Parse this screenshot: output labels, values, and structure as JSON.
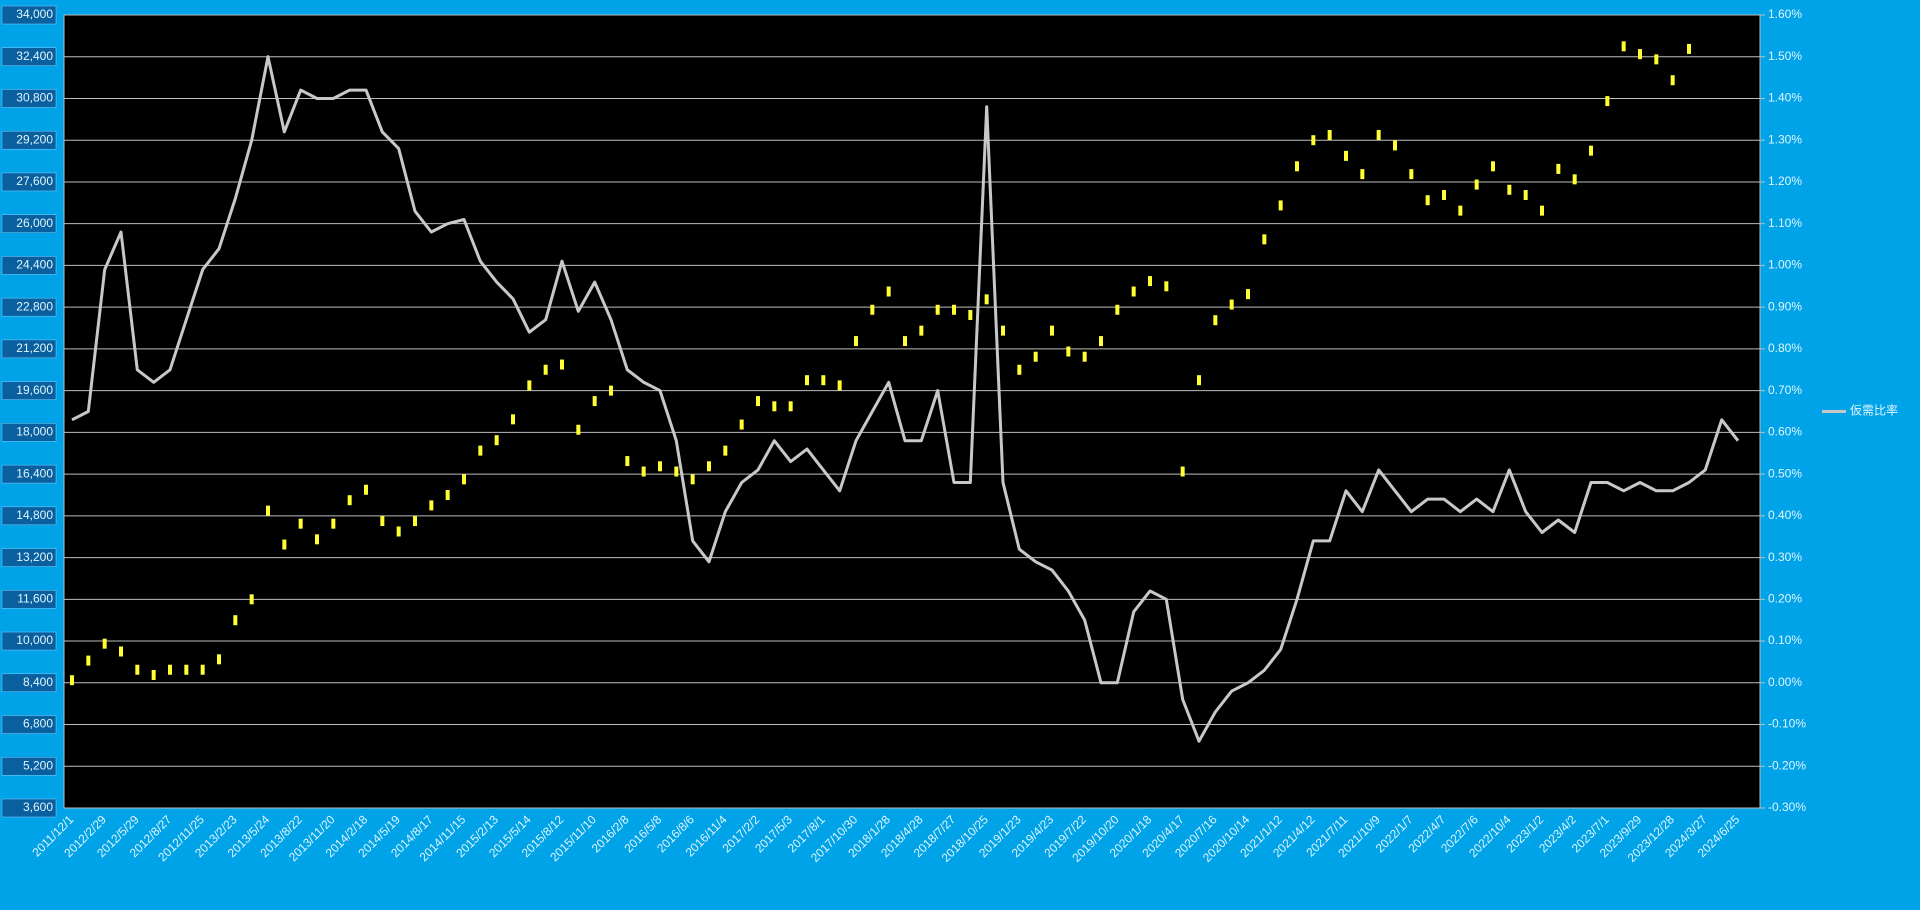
{
  "chart_data": {
    "type": "combo",
    "categories": [
      "2011/12/1",
      null,
      "2012/2/29",
      null,
      "2012/5/29",
      null,
      "2012/8/27",
      null,
      "2012/11/25",
      null,
      "2013/2/23",
      null,
      "2013/5/24",
      null,
      "2013/8/22",
      null,
      "2013/11/20",
      null,
      "2014/2/18",
      null,
      "2014/5/19",
      null,
      "2014/8/17",
      null,
      "2014/11/15",
      null,
      "2015/2/13",
      null,
      "2015/5/14",
      null,
      "2015/8/12",
      null,
      "2015/11/10",
      null,
      "2016/2/8",
      null,
      "2016/5/8",
      null,
      "2016/8/6",
      null,
      "2016/11/4",
      null,
      "2017/2/2",
      null,
      "2017/5/3",
      null,
      "2017/8/1",
      null,
      "2017/10/30",
      null,
      "2018/1/28",
      null,
      "2018/4/28",
      null,
      "2018/7/27",
      null,
      "2018/10/25",
      null,
      "2019/1/23",
      null,
      "2019/4/23",
      null,
      "2019/7/22",
      null,
      "2019/10/20",
      null,
      "2020/1/18",
      null,
      "2020/4/17",
      null,
      "2020/7/16",
      null,
      "2020/10/14",
      null,
      "2021/1/12",
      null,
      "2021/4/12",
      null,
      "2021/7/11",
      null,
      "2021/10/9",
      null,
      "2022/1/7",
      null,
      "2022/4/7",
      null,
      "2022/7/6",
      null,
      "2022/10/4",
      null,
      "2023/1/2",
      null,
      "2023/4/2",
      null,
      "2023/7/1",
      null,
      "2023/9/29",
      null,
      "2023/12/28",
      null,
      "2024/3/27",
      null,
      "2024/6/25"
    ],
    "series": [
      {
        "type": "scatter",
        "color": "#ffff33",
        "values": [
          8500,
          9250,
          9900,
          9600,
          8900,
          8700,
          8900,
          8900,
          8900,
          9300,
          10800,
          11600,
          15000,
          13700,
          14500,
          13900,
          14500,
          15400,
          15800,
          14600,
          14200,
          14600,
          15200,
          15600,
          16200,
          17300,
          17700,
          18500,
          19800,
          20400,
          20600,
          18100,
          19200,
          19600,
          16900,
          16500,
          16700,
          16500,
          16200,
          16700,
          17300,
          18300,
          19200,
          19000,
          19000,
          20000,
          20000,
          19800,
          21500,
          22700,
          23400,
          21500,
          21900,
          22700,
          22700,
          22500,
          23100,
          21900,
          20400,
          20900,
          21900,
          21100,
          20900,
          21500,
          22700,
          23400,
          23800,
          23600,
          16500,
          20000,
          22300,
          22900,
          23300,
          25400,
          26700,
          28200,
          29200,
          29400,
          28600,
          27900,
          29400,
          29000,
          27900,
          26900,
          27100,
          26500,
          27500,
          28200,
          27300,
          27100,
          26500,
          28100,
          27700,
          28800,
          30700,
          32800,
          32500,
          32300,
          31500,
          32700,
          null,
          null,
          null
        ]
      },
      {
        "type": "line",
        "name": "仮需比率",
        "color": "#c8c8c8",
        "axis": "y2",
        "values": [
          0.63,
          0.65,
          0.99,
          1.08,
          0.75,
          0.72,
          0.75,
          0.87,
          0.99,
          1.04,
          1.16,
          1.3,
          1.5,
          1.32,
          1.42,
          1.4,
          1.4,
          1.42,
          1.42,
          1.32,
          1.28,
          1.13,
          1.08,
          1.1,
          1.11,
          1.01,
          0.96,
          0.92,
          0.84,
          0.87,
          1.01,
          0.89,
          0.96,
          0.87,
          0.75,
          0.72,
          0.7,
          0.58,
          0.34,
          0.29,
          0.41,
          0.48,
          0.51,
          0.58,
          0.53,
          0.56,
          0.51,
          0.46,
          0.58,
          0.65,
          0.72,
          0.58,
          0.58,
          0.7,
          0.48,
          0.48,
          1.38,
          0.48,
          0.32,
          0.29,
          0.27,
          0.22,
          0.15,
          0,
          0,
          0.17,
          0.22,
          0.2,
          -0.04,
          -0.14,
          -0.07,
          -0.02,
          0,
          0.03,
          0.08,
          0.2,
          0.34,
          0.34,
          0.46,
          0.41,
          0.51,
          0.46,
          0.41,
          0.44,
          0.44,
          0.41,
          0.44,
          0.41,
          0.51,
          0.41,
          0.36,
          0.39,
          0.36,
          0.48,
          0.48,
          0.46,
          0.48,
          0.46,
          0.46,
          0.48,
          0.51,
          0.63,
          0.58
        ]
      }
    ],
    "ylim": [
      3600,
      34000
    ],
    "yticks": [
      {
        "value": 3600,
        "label": "3,600"
      },
      {
        "value": 5200,
        "label": "5,200"
      },
      {
        "value": 6800,
        "label": "6,800"
      },
      {
        "value": 8400,
        "label": "8,400"
      },
      {
        "value": 10000,
        "label": "10,000"
      },
      {
        "value": 11600,
        "label": "11,600"
      },
      {
        "value": 13200,
        "label": "13,200"
      },
      {
        "value": 14800,
        "label": "14,800"
      },
      {
        "value": 16400,
        "label": "16,400"
      },
      {
        "value": 18000,
        "label": "18,000"
      },
      {
        "value": 19600,
        "label": "19,600"
      },
      {
        "value": 21200,
        "label": "21,200"
      },
      {
        "value": 22800,
        "label": "22,800"
      },
      {
        "value": 24400,
        "label": "24,400"
      },
      {
        "value": 26000,
        "label": "26,000"
      },
      {
        "value": 27600,
        "label": "27,600"
      },
      {
        "value": 29200,
        "label": "29,200"
      },
      {
        "value": 30800,
        "label": "30,800"
      },
      {
        "value": 32400,
        "label": "32,400"
      },
      {
        "value": 34000,
        "label": "34,000"
      }
    ],
    "y2lim": [
      -0.3,
      1.6
    ],
    "y2ticks": [
      {
        "value": -0.3,
        "label": "-0.30%"
      },
      {
        "value": -0.2,
        "label": "-0.20%"
      },
      {
        "value": -0.1,
        "label": "-0.10%"
      },
      {
        "value": 0,
        "label": "0.00%"
      },
      {
        "value": 0.1,
        "label": "0.10%"
      },
      {
        "value": 0.2,
        "label": "0.20%"
      },
      {
        "value": 0.3,
        "label": "0.30%"
      },
      {
        "value": 0.4,
        "label": "0.40%"
      },
      {
        "value": 0.5,
        "label": "0.50%"
      },
      {
        "value": 0.6,
        "label": "0.60%"
      },
      {
        "value": 0.7,
        "label": "0.70%"
      },
      {
        "value": 0.8,
        "label": "0.80%"
      },
      {
        "value": 0.9,
        "label": "0.90%"
      },
      {
        "value": 1.0,
        "label": "1.00%"
      },
      {
        "value": 1.1,
        "label": "1.10%"
      },
      {
        "value": 1.2,
        "label": "1.20%"
      },
      {
        "value": 1.3,
        "label": "1.30%"
      },
      {
        "value": 1.4,
        "label": "1.40%"
      },
      {
        "value": 1.5,
        "label": "1.50%"
      },
      {
        "value": 1.6,
        "label": "1.60%"
      }
    ],
    "grid": true,
    "legend": "right"
  }
}
